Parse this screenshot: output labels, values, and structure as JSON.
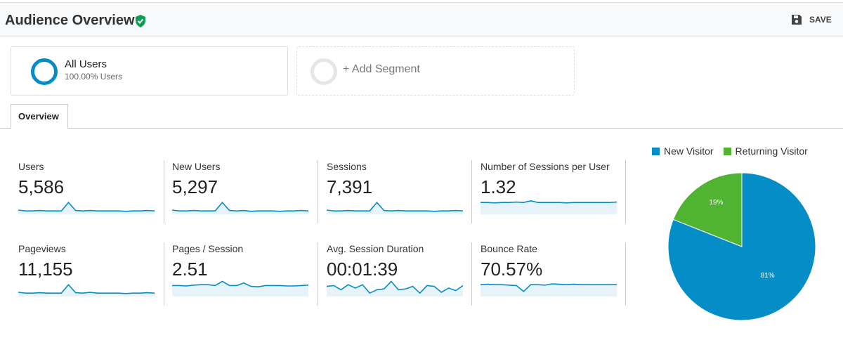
{
  "header": {
    "title": "Audience Overview",
    "save_label": "SAVE"
  },
  "segments": [
    {
      "name": "All Users",
      "sub": "100.00% Users",
      "color": "#058dc7"
    },
    {
      "label": "+ Add Segment"
    }
  ],
  "tabs": [
    {
      "label": "Overview",
      "active": true
    }
  ],
  "metrics": [
    {
      "label": "Users",
      "value": "5,586",
      "trend": [
        5,
        4,
        4,
        4.5,
        4,
        4,
        4,
        14,
        4.5,
        4,
        4.5,
        4,
        4,
        4,
        4,
        3.5,
        4,
        4,
        4.5,
        4
      ]
    },
    {
      "label": "New Users",
      "value": "5,297",
      "trend": [
        5,
        4,
        4,
        4.5,
        4,
        4,
        4,
        14,
        4.5,
        4,
        4.5,
        3.5,
        4,
        4,
        4,
        3.5,
        4,
        4,
        4.5,
        4
      ]
    },
    {
      "label": "Sessions",
      "value": "7,391",
      "trend": [
        5,
        4,
        4,
        4.5,
        4,
        4,
        4,
        14,
        4.5,
        4,
        4.5,
        4,
        4,
        4,
        4,
        3.5,
        4,
        4,
        4.5,
        4
      ]
    },
    {
      "label": "Number of Sessions per User",
      "value": "1.32",
      "trend": [
        14,
        14,
        13.5,
        14,
        14,
        14.5,
        14,
        16,
        14,
        14,
        14,
        14,
        13.5,
        14,
        14,
        14,
        14,
        14,
        14,
        14.5
      ]
    },
    {
      "label": "Pageviews",
      "value": "11,155",
      "trend": [
        5,
        4,
        4,
        4.5,
        4,
        4,
        4,
        14,
        4.5,
        4,
        5,
        4,
        4,
        4,
        4,
        3.5,
        4,
        4,
        4.5,
        4
      ]
    },
    {
      "label": "Pages / Session",
      "value": "2.51",
      "trend": [
        13,
        13,
        12.5,
        13.5,
        14,
        14,
        13,
        18,
        13,
        13,
        16,
        12,
        11.5,
        13,
        13,
        13,
        12.5,
        12.5,
        13,
        13.5
      ]
    },
    {
      "label": "Avg. Session Duration",
      "value": "00:01:39",
      "trend": [
        12,
        13,
        8,
        14,
        10,
        14,
        4,
        8,
        9,
        18,
        8,
        9,
        12,
        4,
        13,
        12,
        5,
        10,
        7,
        13
      ]
    },
    {
      "label": "Bounce Rate",
      "value": "70.57%",
      "trend": [
        14,
        14.5,
        14,
        14,
        13.5,
        13,
        6,
        14,
        14,
        13.5,
        15,
        14.5,
        14,
        14.5,
        14,
        14,
        14,
        14,
        14,
        14
      ]
    }
  ],
  "legend": [
    {
      "label": "New Visitor",
      "color": "#058dc7"
    },
    {
      "label": "Returning Visitor",
      "color": "#50b432"
    }
  ],
  "chart_data": {
    "type": "pie",
    "series": [
      {
        "label": "New Visitor",
        "value": 81,
        "display": "81%",
        "color": "#058dc7"
      },
      {
        "label": "Returning Visitor",
        "value": 19,
        "display": "19%",
        "color": "#50b432"
      }
    ]
  }
}
